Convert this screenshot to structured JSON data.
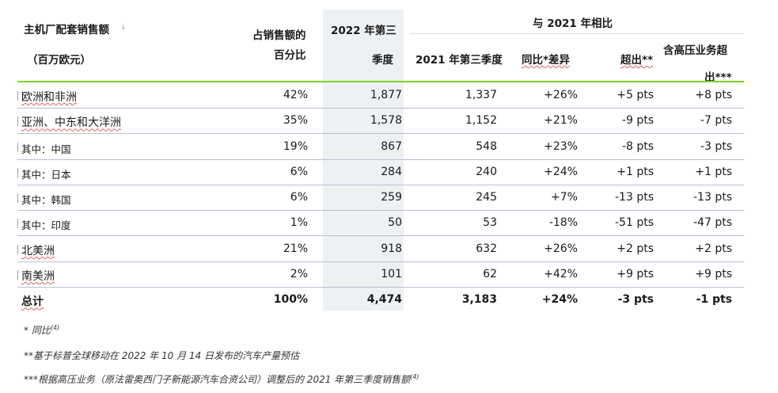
{
  "header": {
    "col1_line1": "主机厂配套销售额",
    "col1_line2": "（百万欧元）",
    "share_line1": "占销售额的",
    "share_line2": "百分比",
    "y2022_line1": "2022 年第三",
    "y2022_line2": "季度",
    "group_title": "与 2021 年相比",
    "y2021": "2021 年第三季度",
    "yoy": "同比*差异",
    "outperf": "超出**",
    "hv_line1": "含高压业务超",
    "hv_line2": "出***"
  },
  "rows": [
    {
      "region": "欧洲和非洲",
      "share": "42%",
      "q3_2022": "1,877",
      "q3_2021": "1,337",
      "yoy": "+26%",
      "outperf": "+5 pts",
      "hv": "+8 pts"
    },
    {
      "region": "亚洲、中东和大洋洲",
      "share": "35%",
      "q3_2022": "1,578",
      "q3_2021": "1,152",
      "yoy": "+21%",
      "outperf": "-9 pts",
      "hv": "-7 pts"
    },
    {
      "region": "其中：中国",
      "share": "19%",
      "q3_2022": "867",
      "q3_2021": "548",
      "yoy": "+23%",
      "outperf": "-8 pts",
      "hv": "-3 pts"
    },
    {
      "region": "其中：日本",
      "share": "6%",
      "q3_2022": "284",
      "q3_2021": "240",
      "yoy": "+24%",
      "outperf": "+1 pts",
      "hv": "+1 pts"
    },
    {
      "region": "其中：韩国",
      "share": "6%",
      "q3_2022": "259",
      "q3_2021": "245",
      "yoy": "+7%",
      "outperf": "-13 pts",
      "hv": "-13 pts"
    },
    {
      "region": "其中：印度",
      "share": "1%",
      "q3_2022": "50",
      "q3_2021": "53",
      "yoy": "-18%",
      "outperf": "-51 pts",
      "hv": "-47 pts"
    },
    {
      "region": "北美洲",
      "share": "21%",
      "q3_2022": "918",
      "q3_2021": "632",
      "yoy": "+26%",
      "outperf": "+2 pts",
      "hv": "+2 pts"
    },
    {
      "region": "南美洲",
      "share": "2%",
      "q3_2022": "101",
      "q3_2021": "62",
      "yoy": "+42%",
      "outperf": "+9 pts",
      "hv": "+9 pts"
    }
  ],
  "total": {
    "region": "总计",
    "share": "100%",
    "q3_2022": "4,474",
    "q3_2021": "3,183",
    "yoy": "+24%",
    "outperf": "-3 pts",
    "hv": "-1 pts"
  },
  "notes": {
    "n1": "* 同比",
    "n1_ref": "(4)",
    "n2": "**基于标普全球移动在 2022 年 10 月 14 日发布的汽车产量预估",
    "n3": "***根据高压业务（原法雷奥西门子新能源汽车合资公司）调整后的 2021 年第三季度销售额",
    "n3_ref": "(4)"
  },
  "colors": {
    "accent_line": "#7ed321",
    "row_line": "#b9bfd3",
    "shade": "#eef1f4"
  }
}
